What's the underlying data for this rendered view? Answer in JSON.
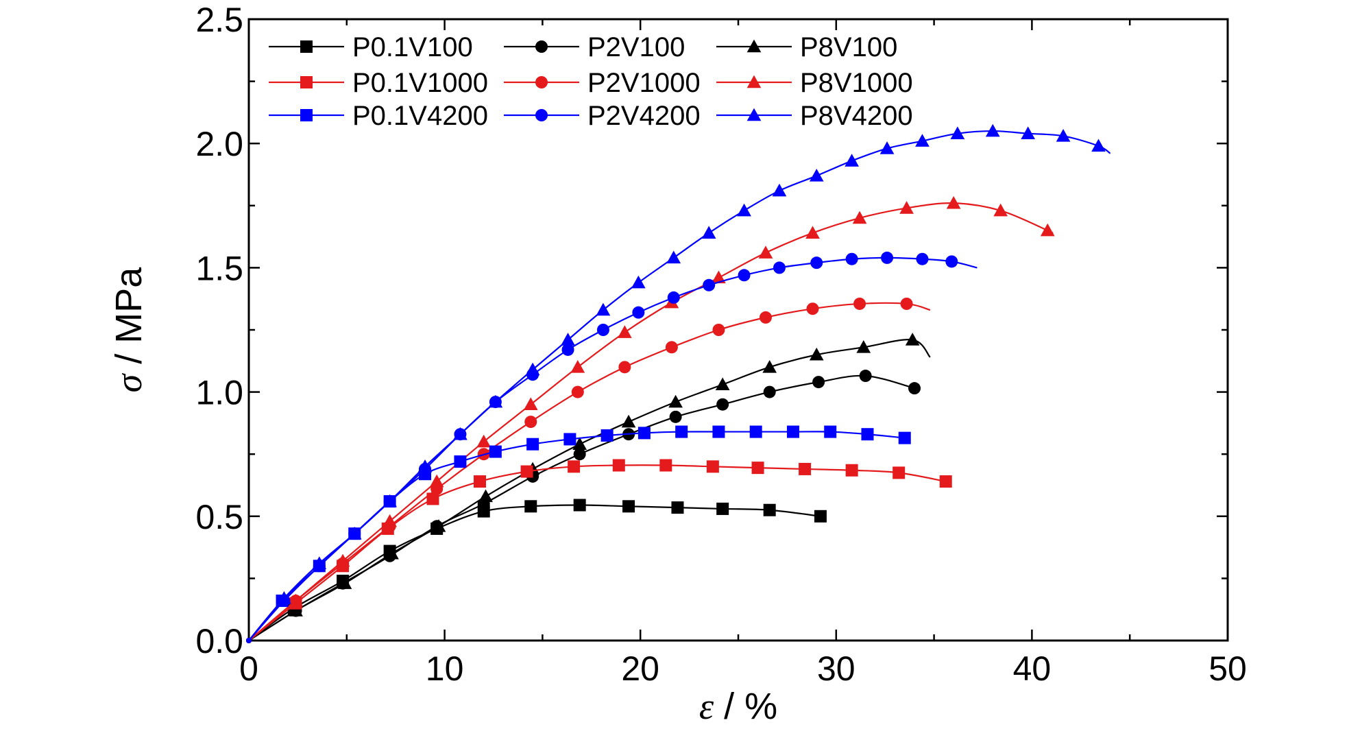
{
  "chart_data": {
    "type": "line",
    "xlabel_symbol": "ε",
    "xlabel_unit": " / %",
    "ylabel_symbol": "σ",
    "ylabel_unit": " / MPa",
    "xlim": [
      0,
      50
    ],
    "ylim": [
      0,
      2.5
    ],
    "xticks": [
      "0",
      "10",
      "20",
      "30",
      "40",
      "50"
    ],
    "yticks": [
      "0.0",
      "0.5",
      "1.0",
      "1.5",
      "2.0",
      "2.5"
    ],
    "grid": false,
    "legend_position": "top-left",
    "series": [
      {
        "name": "P0.1V100",
        "color": "#000000",
        "marker": "square",
        "x": [
          0,
          2.3,
          4.8,
          7.2,
          9.6,
          12.0,
          14.4,
          16.9,
          19.4,
          21.9,
          24.2,
          26.6,
          29.2
        ],
        "y": [
          0,
          0.13,
          0.24,
          0.36,
          0.45,
          0.52,
          0.54,
          0.545,
          0.54,
          0.535,
          0.53,
          0.525,
          0.5
        ]
      },
      {
        "name": "P2V100",
        "color": "#000000",
        "marker": "circle",
        "x": [
          0,
          2.4,
          4.8,
          7.2,
          9.6,
          12.0,
          14.5,
          16.9,
          19.4,
          21.8,
          24.2,
          26.6,
          29.1,
          31.5,
          34.0
        ],
        "y": [
          0,
          0.12,
          0.23,
          0.34,
          0.46,
          0.55,
          0.66,
          0.75,
          0.83,
          0.9,
          0.95,
          1.0,
          1.04,
          1.065,
          1.015
        ]
      },
      {
        "name": "P8V100",
        "color": "#000000",
        "marker": "triangle",
        "x": [
          0,
          2.4,
          4.9,
          7.3,
          9.7,
          12.1,
          14.5,
          16.9,
          19.4,
          21.8,
          24.2,
          26.6,
          29.0,
          31.4,
          33.9
        ],
        "y": [
          0,
          0.12,
          0.23,
          0.35,
          0.46,
          0.58,
          0.69,
          0.79,
          0.88,
          0.96,
          1.03,
          1.1,
          1.15,
          1.18,
          1.21
        ],
        "tail": [
          34.8,
          1.14
        ]
      },
      {
        "name": "P0.1V1000",
        "color": "#e41a1c",
        "marker": "square",
        "x": [
          0,
          2.4,
          4.8,
          7.1,
          9.4,
          11.8,
          14.2,
          16.6,
          18.9,
          21.3,
          23.7,
          26.0,
          28.4,
          30.8,
          33.2,
          35.6
        ],
        "y": [
          0,
          0.15,
          0.3,
          0.45,
          0.57,
          0.64,
          0.68,
          0.7,
          0.705,
          0.705,
          0.7,
          0.695,
          0.69,
          0.685,
          0.675,
          0.64
        ]
      },
      {
        "name": "P2V1000",
        "color": "#e41a1c",
        "marker": "circle",
        "x": [
          0,
          2.4,
          4.8,
          7.2,
          9.6,
          12.0,
          14.4,
          16.8,
          19.2,
          21.6,
          24.0,
          26.4,
          28.8,
          31.2,
          33.6
        ],
        "y": [
          0,
          0.16,
          0.31,
          0.46,
          0.61,
          0.75,
          0.88,
          1.0,
          1.1,
          1.18,
          1.25,
          1.3,
          1.335,
          1.355,
          1.355
        ],
        "tail": [
          34.8,
          1.33
        ]
      },
      {
        "name": "P8V1000",
        "color": "#e41a1c",
        "marker": "triangle",
        "x": [
          0,
          2.4,
          4.8,
          7.2,
          9.6,
          12.0,
          14.4,
          16.8,
          19.2,
          21.6,
          24.0,
          26.4,
          28.8,
          31.2,
          33.6,
          36.0,
          38.4,
          40.8
        ],
        "y": [
          0,
          0.16,
          0.32,
          0.48,
          0.64,
          0.8,
          0.95,
          1.1,
          1.24,
          1.36,
          1.46,
          1.56,
          1.64,
          1.7,
          1.74,
          1.76,
          1.73,
          1.65
        ],
        "tail": [
          41.0,
          1.64
        ]
      },
      {
        "name": "P0.1V4200",
        "color": "#0000ff",
        "marker": "square",
        "x": [
          0,
          1.7,
          3.6,
          5.4,
          7.2,
          9.0,
          10.8,
          12.6,
          14.5,
          16.4,
          18.3,
          20.2,
          22.1,
          24.0,
          25.9,
          27.8,
          29.7,
          31.6,
          33.5
        ],
        "y": [
          0,
          0.16,
          0.3,
          0.43,
          0.56,
          0.67,
          0.72,
          0.76,
          0.79,
          0.81,
          0.825,
          0.835,
          0.84,
          0.84,
          0.84,
          0.84,
          0.84,
          0.83,
          0.815
        ]
      },
      {
        "name": "P2V4200",
        "color": "#0000ff",
        "marker": "circle",
        "x": [
          0,
          1.8,
          3.6,
          5.4,
          7.2,
          9.0,
          10.8,
          12.6,
          14.5,
          16.3,
          18.1,
          19.9,
          21.7,
          23.5,
          25.3,
          27.1,
          29.0,
          30.8,
          32.6,
          34.4,
          35.9
        ],
        "y": [
          0,
          0.16,
          0.3,
          0.43,
          0.56,
          0.69,
          0.83,
          0.96,
          1.07,
          1.17,
          1.25,
          1.32,
          1.38,
          1.43,
          1.47,
          1.5,
          1.52,
          1.535,
          1.54,
          1.535,
          1.525
        ],
        "tail": [
          37.2,
          1.5
        ]
      },
      {
        "name": "P8V4200",
        "color": "#0000ff",
        "marker": "triangle",
        "x": [
          0,
          1.8,
          3.6,
          5.4,
          7.2,
          9.0,
          10.8,
          12.6,
          14.5,
          16.3,
          18.1,
          19.9,
          21.7,
          23.5,
          25.3,
          27.1,
          29.0,
          30.8,
          32.6,
          34.4,
          36.2,
          38.0,
          39.8,
          41.6,
          43.4
        ],
        "y": [
          0,
          0.17,
          0.31,
          0.43,
          0.56,
          0.7,
          0.83,
          0.96,
          1.09,
          1.21,
          1.33,
          1.44,
          1.54,
          1.64,
          1.73,
          1.81,
          1.87,
          1.93,
          1.98,
          2.01,
          2.04,
          2.05,
          2.04,
          2.03,
          1.99
        ],
        "tail": [
          44.0,
          1.96
        ]
      }
    ]
  }
}
